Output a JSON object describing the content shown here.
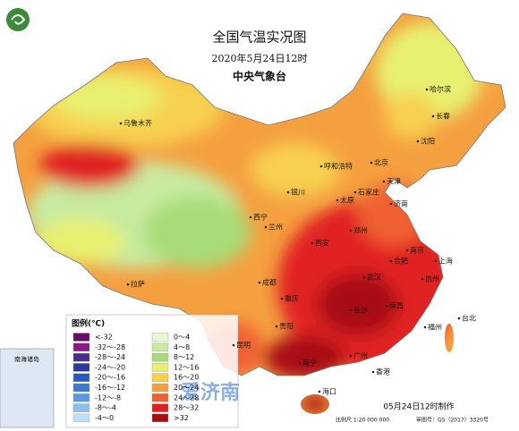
{
  "header": {
    "title": "全国气温实况图",
    "time": "2020年5月24日12时",
    "issuer": "中央气象台"
  },
  "legend": {
    "title": "图例(℃)",
    "items": [
      {
        "label": "<-32",
        "color": "#6a0a6a"
      },
      {
        "label": "-32～-28",
        "color": "#8a1a8a"
      },
      {
        "label": "-28～-24",
        "color": "#4a2a8a"
      },
      {
        "label": "-24～-20",
        "color": "#2a3a9a"
      },
      {
        "label": "-20～-16",
        "color": "#2a5aba"
      },
      {
        "label": "-16～-12",
        "color": "#3a7ad0"
      },
      {
        "label": "-12～-8",
        "color": "#5a9ae0"
      },
      {
        "label": "-8～-4",
        "color": "#8ac0ee"
      },
      {
        "label": "-4～0",
        "color": "#c0e0f8"
      },
      {
        "label": "0～4",
        "color": "#e8f8d0"
      },
      {
        "label": "4～8",
        "color": "#c8eaa0"
      },
      {
        "label": "8～12",
        "color": "#a8dc78"
      },
      {
        "label": "12～16",
        "color": "#e8f070"
      },
      {
        "label": "16～20",
        "color": "#f8d050"
      },
      {
        "label": "20～24",
        "color": "#f5a040"
      },
      {
        "label": "24～28",
        "color": "#f06030"
      },
      {
        "label": "28～32",
        "color": "#e02020"
      },
      {
        "label": ">32",
        "color": "#a80c14"
      }
    ]
  },
  "cities": [
    "乌鲁木齐",
    "哈尔滨",
    "长春",
    "沈阳",
    "呼和浩特",
    "北京",
    "天津",
    "石家庄",
    "太原",
    "银川",
    "西宁",
    "兰州",
    "济南",
    "西安",
    "郑州",
    "合肥",
    "南京",
    "上海",
    "拉萨",
    "成都",
    "重庆",
    "武汉",
    "杭州",
    "贵阳",
    "长沙",
    "南昌",
    "福州",
    "台北",
    "昆明",
    "南宁",
    "广州",
    "香港",
    "海口"
  ],
  "inset_label": "南海诸岛",
  "watermark": "爱济南",
  "footer": {
    "made": "05月24日12时制作",
    "scale": "比例尺 1:20 000 000",
    "approval": "审图号：GS（2017）3320号"
  }
}
